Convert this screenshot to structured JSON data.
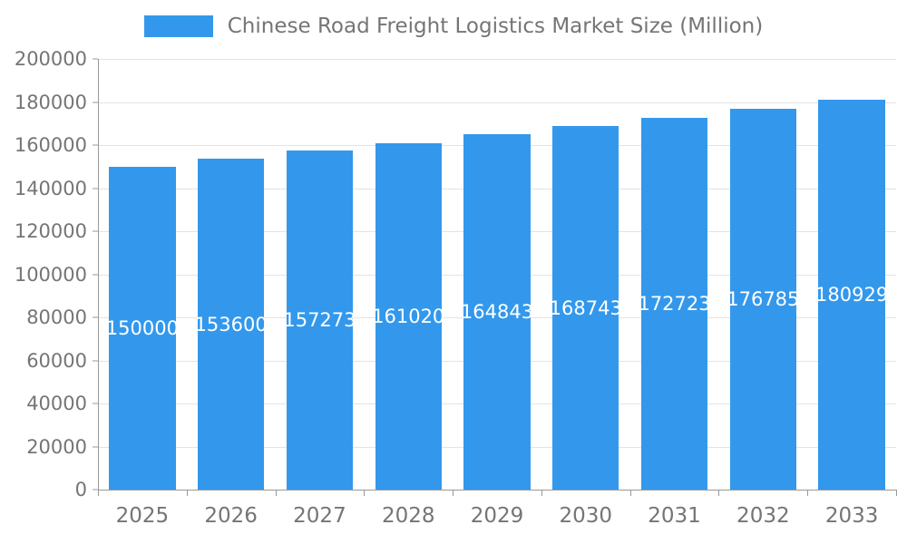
{
  "colors": {
    "bar": "#3398ec",
    "grid": "#e3e3e3",
    "axis": "#999999",
    "text": "#757575",
    "bar_label": "#ffffff"
  },
  "legend": {
    "label": "Chinese Road Freight Logistics Market Size (Million)"
  },
  "chart_data": {
    "type": "bar",
    "title": "Chinese Road Freight Logistics Market Size (Million)",
    "categories": [
      "2025",
      "2026",
      "2027",
      "2028",
      "2029",
      "2030",
      "2031",
      "2032",
      "2033"
    ],
    "values": [
      150000,
      153600,
      157273,
      161020,
      164843,
      168743,
      172723,
      176785,
      180929
    ],
    "xlabel": "",
    "ylabel": "",
    "ylim": [
      0,
      200000
    ],
    "yticks": [
      0,
      20000,
      40000,
      60000,
      80000,
      100000,
      120000,
      140000,
      160000,
      180000,
      200000
    ],
    "grid": true,
    "legend_position": "top",
    "bar_label_position": "inside-center"
  }
}
